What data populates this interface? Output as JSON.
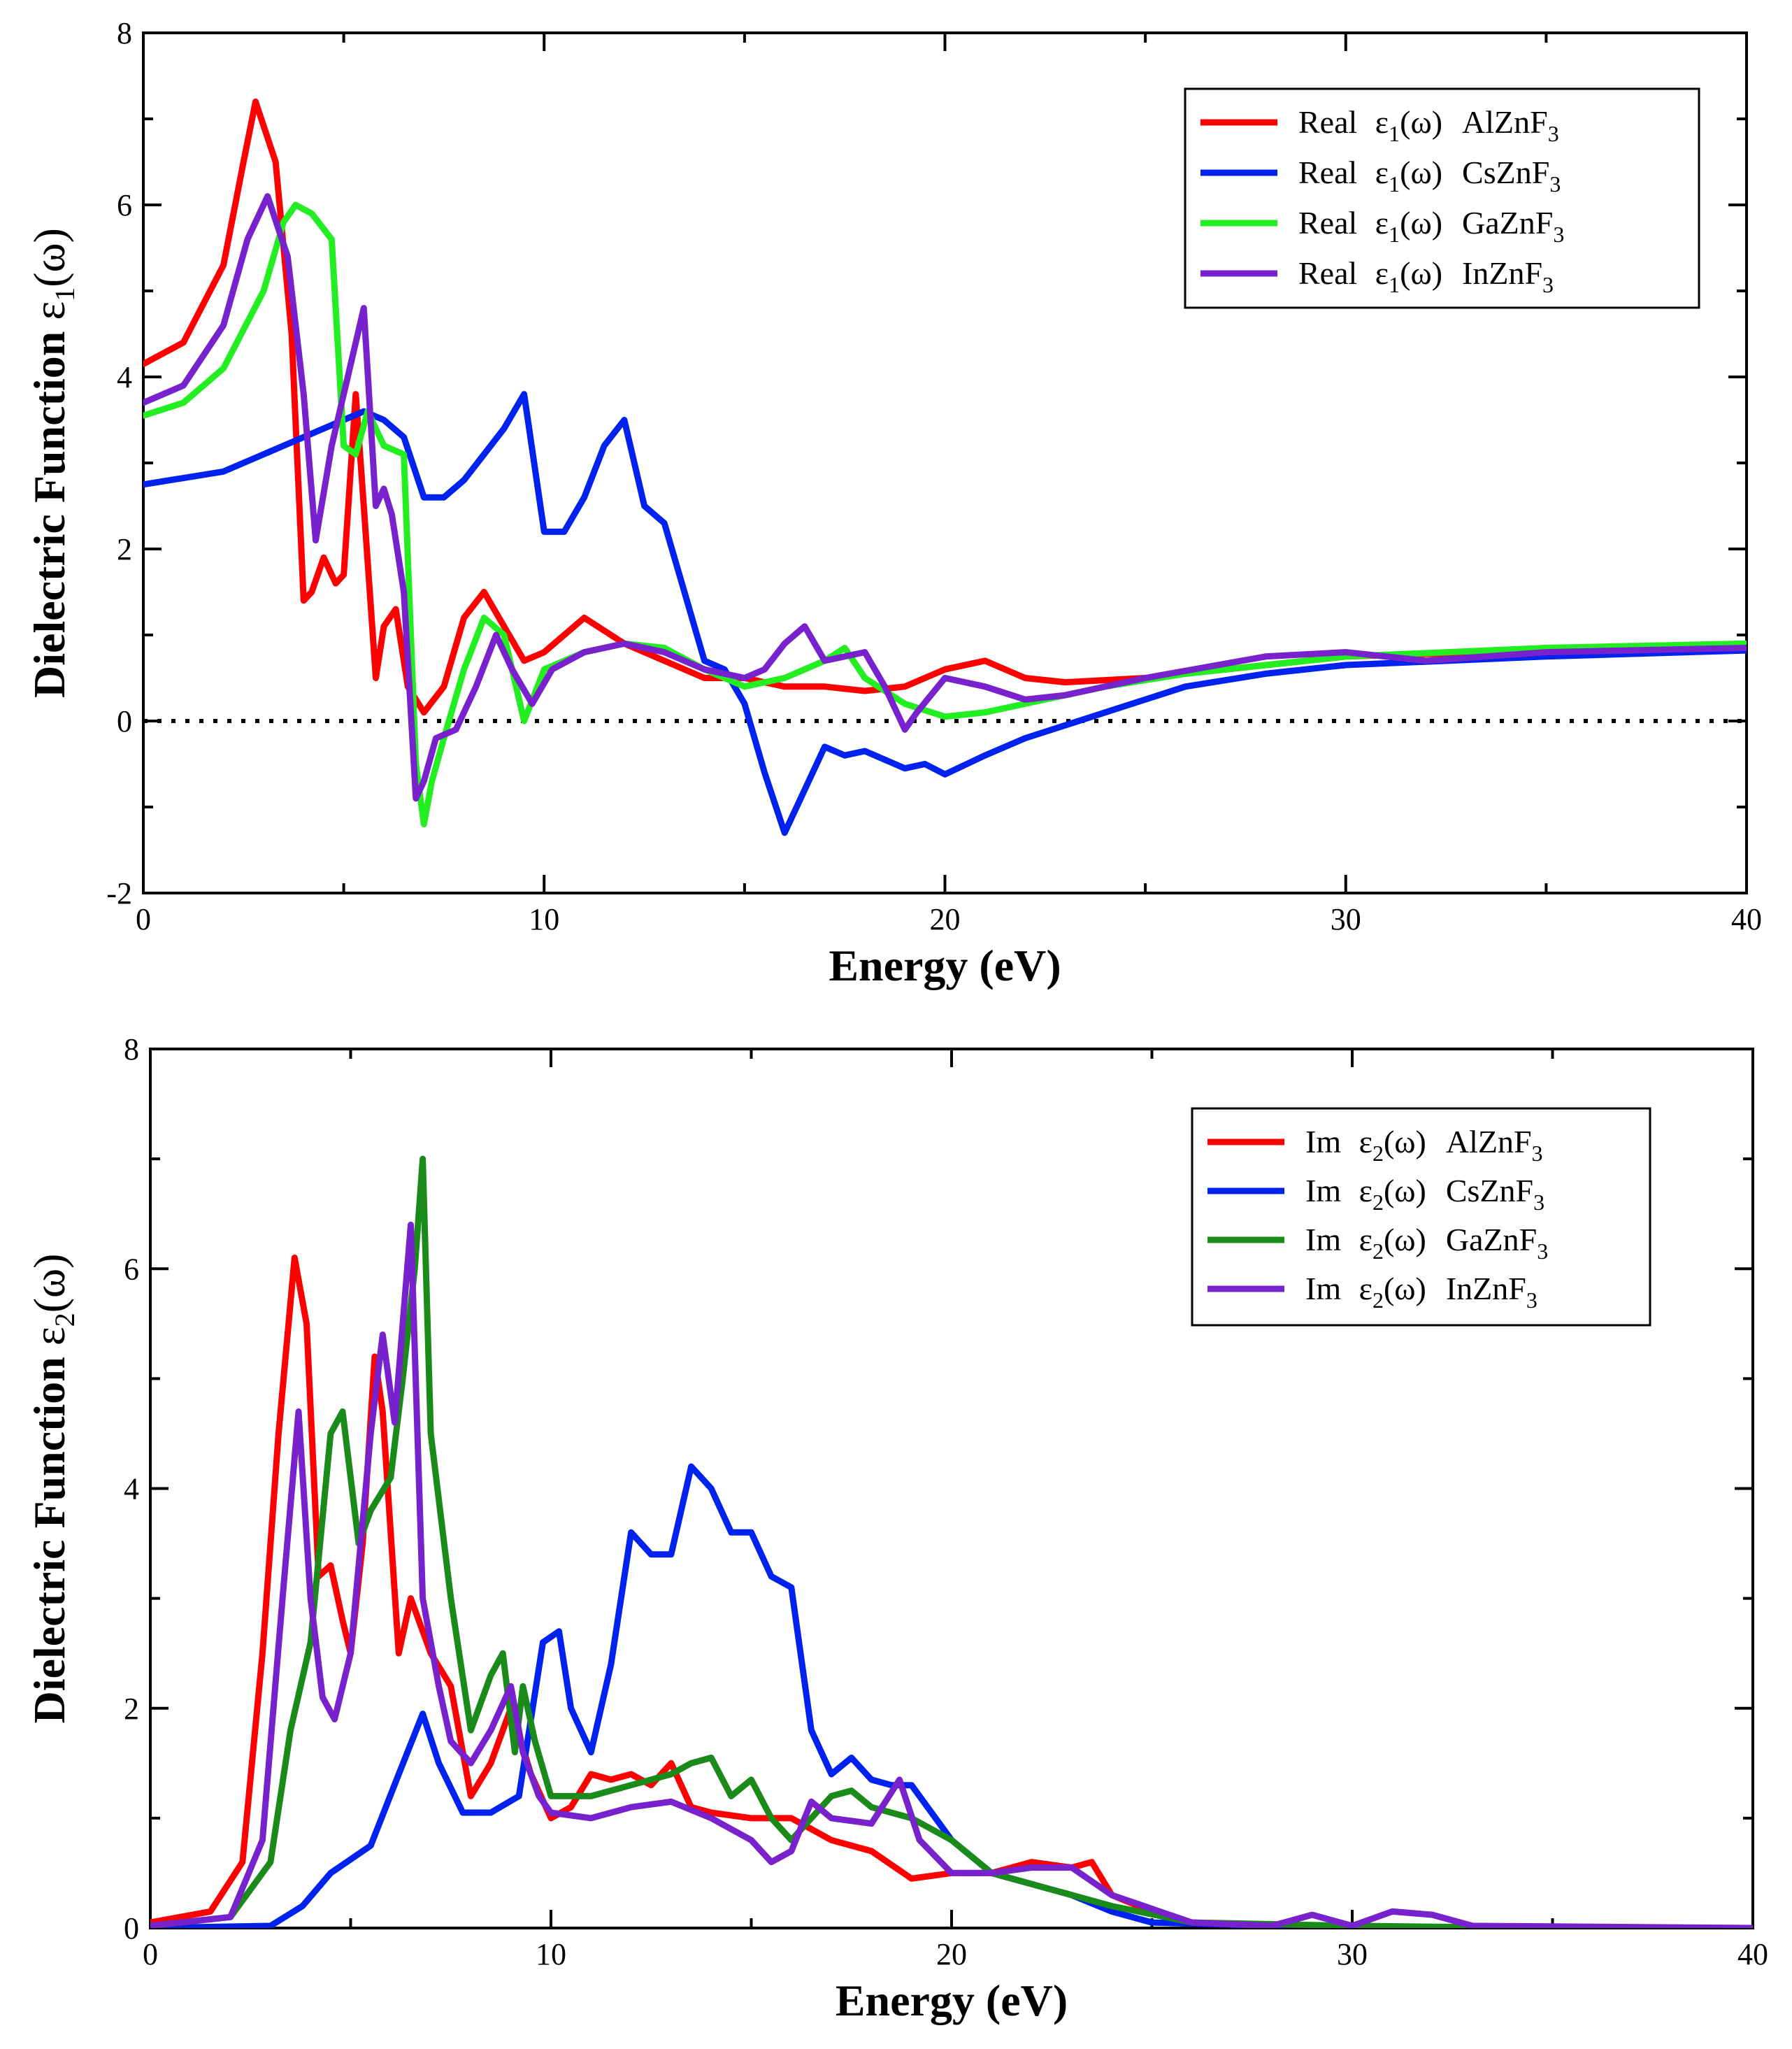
{
  "colors": {
    "red": "#ff0000",
    "blue": "#0022ee",
    "green_light": "#22ee22",
    "green_dark": "#1a8a1a",
    "purple": "#7722cc"
  },
  "chart_data": [
    {
      "type": "line",
      "xlabel": "Energy (eV)",
      "ylabel": "Dielectric Function ε1(ω)",
      "ylabel_prefix": "Dielectric Function ",
      "ylabel_symbol": "ε",
      "ylabel_sub": "1",
      "ylabel_suffix": "(ω)",
      "xlim": [
        0,
        40
      ],
      "ylim": [
        -2,
        8
      ],
      "xticks": [
        "0",
        "10",
        "20",
        "30",
        "40"
      ],
      "yticks": [
        "-2",
        "0",
        "2",
        "4",
        "6",
        "8"
      ],
      "grid": false,
      "reference_line": {
        "y": 0,
        "style": "dotted"
      },
      "legend_position": "top-right",
      "series": [
        {
          "name": "Real ε1(ω) AlZnF3",
          "label_prefix": "Real",
          "symbol": "ε",
          "sub": "1",
          "suffix": "(ω)",
          "material": "AlZnF",
          "material_sub": "3",
          "color": "#ff0000",
          "x": [
            0,
            1,
            2,
            2.5,
            2.8,
            3.3,
            3.7,
            4.0,
            4.2,
            4.5,
            4.8,
            5.0,
            5.3,
            5.5,
            5.8,
            6.0,
            6.3,
            6.6,
            7.0,
            7.5,
            8.0,
            8.5,
            9.0,
            9.5,
            10.0,
            11.0,
            12.0,
            13.0,
            14.0,
            15.0,
            16.0,
            17.0,
            18.0,
            19.0,
            20.0,
            21.0,
            22.0,
            23.0,
            25.0,
            30.0,
            35.0,
            40.0
          ],
          "y": [
            4.15,
            4.4,
            5.3,
            6.5,
            7.2,
            6.5,
            4.5,
            1.4,
            1.5,
            1.9,
            1.6,
            1.7,
            3.8,
            2.5,
            0.5,
            1.1,
            1.3,
            0.4,
            0.1,
            0.4,
            1.2,
            1.5,
            1.1,
            0.7,
            0.8,
            1.2,
            0.9,
            0.7,
            0.5,
            0.5,
            0.4,
            0.4,
            0.35,
            0.4,
            0.6,
            0.7,
            0.5,
            0.45,
            0.5,
            0.75,
            0.82,
            0.88
          ]
        },
        {
          "name": "Real ε1(ω) CsZnF3",
          "label_prefix": "Real",
          "symbol": "ε",
          "sub": "1",
          "suffix": "(ω)",
          "material": "CsZnF",
          "material_sub": "3",
          "color": "#0022ee",
          "x": [
            0,
            2,
            3.5,
            4.5,
            5.5,
            6.0,
            6.5,
            7.0,
            7.5,
            8.0,
            8.5,
            9.0,
            9.5,
            10.0,
            10.5,
            11.0,
            11.5,
            12.0,
            12.5,
            13.0,
            13.5,
            14.0,
            14.5,
            15.0,
            15.5,
            16.0,
            16.5,
            17.0,
            17.5,
            18.0,
            19.0,
            19.5,
            20.0,
            21.0,
            22.0,
            24.0,
            26.0,
            28.0,
            30.0,
            35.0,
            40.0
          ],
          "y": [
            2.75,
            2.9,
            3.2,
            3.4,
            3.6,
            3.5,
            3.3,
            2.6,
            2.6,
            2.8,
            3.1,
            3.4,
            3.8,
            2.2,
            2.2,
            2.6,
            3.2,
            3.5,
            2.5,
            2.3,
            1.5,
            0.7,
            0.6,
            0.2,
            -0.6,
            -1.3,
            -0.8,
            -0.3,
            -0.4,
            -0.35,
            -0.55,
            -0.5,
            -0.62,
            -0.4,
            -0.2,
            0.1,
            0.4,
            0.55,
            0.65,
            0.75,
            0.82
          ]
        },
        {
          "name": "Real ε1(ω) GaZnF3",
          "label_prefix": "Real",
          "symbol": "ε",
          "sub": "1",
          "suffix": "(ω)",
          "material": "GaZnF",
          "material_sub": "3",
          "color": "#22ee22",
          "x": [
            0,
            1,
            2,
            3,
            3.5,
            3.8,
            4.2,
            4.7,
            5.0,
            5.3,
            5.6,
            6.0,
            6.5,
            6.8,
            7.0,
            7.2,
            7.5,
            8.0,
            8.5,
            9.0,
            9.5,
            10.0,
            11.0,
            12.0,
            13.0,
            14.0,
            15.0,
            16.0,
            17.0,
            17.5,
            18.0,
            19.0,
            20.0,
            21.0,
            22.0,
            24.0,
            26.0,
            30.0,
            35.0,
            40.0
          ],
          "y": [
            3.55,
            3.7,
            4.1,
            5.0,
            5.8,
            6.0,
            5.9,
            5.6,
            3.2,
            3.1,
            3.6,
            3.2,
            3.1,
            -0.5,
            -1.2,
            -0.7,
            -0.2,
            0.6,
            1.2,
            1.0,
            0.0,
            0.6,
            0.8,
            0.9,
            0.85,
            0.6,
            0.4,
            0.5,
            0.7,
            0.85,
            0.5,
            0.2,
            0.05,
            0.1,
            0.2,
            0.4,
            0.55,
            0.75,
            0.85,
            0.9
          ]
        },
        {
          "name": "Real ε1(ω) InZnF3",
          "label_prefix": "Real",
          "symbol": "ε",
          "sub": "1",
          "suffix": "(ω)",
          "material": "InZnF",
          "material_sub": "3",
          "color": "#7722cc",
          "x": [
            0,
            1,
            2,
            2.6,
            3.1,
            3.6,
            4.0,
            4.3,
            4.7,
            5.0,
            5.5,
            5.8,
            6.0,
            6.2,
            6.5,
            6.8,
            7.0,
            7.3,
            7.8,
            8.3,
            8.8,
            9.2,
            9.7,
            10.2,
            11.0,
            12.0,
            13.0,
            14.0,
            15.0,
            15.5,
            16.0,
            16.5,
            17.0,
            18.0,
            18.5,
            19.0,
            19.3,
            20.0,
            21.0,
            22.0,
            23.0,
            25.0,
            28.0,
            30.0,
            32.0,
            35.0,
            40.0
          ],
          "y": [
            3.7,
            3.9,
            4.6,
            5.6,
            6.1,
            5.4,
            3.8,
            2.1,
            3.2,
            3.8,
            4.8,
            2.5,
            2.7,
            2.4,
            1.5,
            -0.9,
            -0.7,
            -0.2,
            -0.1,
            0.4,
            1.0,
            0.6,
            0.2,
            0.6,
            0.8,
            0.9,
            0.8,
            0.6,
            0.5,
            0.6,
            0.9,
            1.1,
            0.7,
            0.8,
            0.4,
            -0.1,
            0.1,
            0.5,
            0.4,
            0.25,
            0.3,
            0.5,
            0.75,
            0.8,
            0.7,
            0.8,
            0.85
          ]
        }
      ]
    },
    {
      "type": "line",
      "xlabel": "Energy (eV)",
      "ylabel": "Dielectric Function ε2(ω)",
      "ylabel_prefix": "Dielectric Function ",
      "ylabel_symbol": "ε",
      "ylabel_sub": "2",
      "ylabel_suffix": "(ω)",
      "xlim": [
        0,
        40
      ],
      "ylim": [
        0,
        8
      ],
      "xticks": [
        "0",
        "10",
        "20",
        "30",
        "40"
      ],
      "yticks": [
        "0",
        "2",
        "4",
        "6",
        "8"
      ],
      "grid": false,
      "legend_position": "top-right",
      "series": [
        {
          "name": "Im ε2(ω) AlZnF3",
          "label_prefix": "Im",
          "symbol": "ε",
          "sub": "2",
          "suffix": "(ω)",
          "material": "AlZnF",
          "material_sub": "3",
          "color": "#ff0000",
          "x": [
            0,
            1.5,
            2.3,
            2.8,
            3.2,
            3.6,
            3.9,
            4.2,
            4.5,
            4.8,
            5.0,
            5.3,
            5.6,
            5.8,
            6.2,
            6.5,
            7.0,
            7.5,
            8.0,
            8.5,
            9.0,
            9.5,
            10.0,
            10.5,
            11.0,
            11.5,
            12.0,
            12.5,
            13.0,
            13.5,
            14.0,
            15.0,
            16.0,
            17.0,
            18.0,
            19.0,
            20.0,
            21.0,
            22.0,
            23.0,
            23.5,
            24.0,
            25.0,
            26.0,
            28.0,
            30.0,
            33.0,
            40.0
          ],
          "y": [
            0.05,
            0.15,
            0.6,
            2.5,
            4.5,
            6.1,
            5.5,
            3.2,
            3.3,
            2.8,
            2.5,
            3.5,
            5.2,
            4.7,
            2.5,
            3.0,
            2.5,
            2.2,
            1.2,
            1.5,
            2.0,
            1.4,
            1.0,
            1.1,
            1.4,
            1.35,
            1.4,
            1.3,
            1.5,
            1.1,
            1.05,
            1.0,
            1.0,
            0.8,
            0.7,
            0.45,
            0.5,
            0.5,
            0.6,
            0.55,
            0.6,
            0.3,
            0.15,
            0.05,
            0.02,
            0.02,
            0.0,
            0.0
          ]
        },
        {
          "name": "Im ε2(ω) CsZnF3",
          "label_prefix": "Im",
          "symbol": "ε",
          "sub": "2",
          "suffix": "(ω)",
          "material": "CsZnF",
          "material_sub": "3",
          "color": "#0022ee",
          "x": [
            0,
            3.0,
            3.8,
            4.5,
            5.5,
            6.2,
            6.8,
            7.2,
            7.8,
            8.5,
            9.2,
            9.8,
            10.2,
            10.5,
            11.0,
            11.5,
            12.0,
            12.5,
            13.0,
            13.5,
            14.0,
            14.5,
            15.0,
            15.5,
            16.0,
            16.5,
            17.0,
            17.5,
            18.0,
            18.5,
            19.0,
            20.0,
            21.0,
            22.0,
            23.0,
            24.0,
            25.0,
            28.0,
            30.0,
            40.0
          ],
          "y": [
            0.0,
            0.02,
            0.2,
            0.5,
            0.75,
            1.4,
            1.95,
            1.5,
            1.05,
            1.05,
            1.2,
            2.6,
            2.7,
            2.0,
            1.6,
            2.4,
            3.6,
            3.4,
            3.4,
            4.2,
            4.0,
            3.6,
            3.6,
            3.2,
            3.1,
            1.8,
            1.4,
            1.55,
            1.35,
            1.3,
            1.3,
            0.8,
            0.5,
            0.4,
            0.3,
            0.15,
            0.05,
            0.02,
            0.01,
            0.0
          ]
        },
        {
          "name": "Im ε2(ω) GaZnF3",
          "label_prefix": "Im",
          "symbol": "ε",
          "sub": "2",
          "suffix": "(ω)",
          "material": "GaZnF",
          "material_sub": "3",
          "color": "#1a8a1a",
          "x": [
            0,
            2.0,
            3.0,
            3.5,
            4.0,
            4.5,
            4.8,
            5.2,
            5.5,
            6.0,
            6.3,
            6.6,
            6.8,
            7.0,
            7.5,
            8.0,
            8.5,
            8.8,
            9.1,
            9.3,
            9.6,
            10.0,
            11.0,
            12.0,
            13.0,
            13.5,
            14.0,
            14.5,
            15.0,
            15.5,
            16.0,
            17.0,
            17.5,
            18.0,
            19.0,
            20.0,
            21.0,
            22.0,
            24.0,
            26.0,
            30.0,
            35.0,
            40.0
          ],
          "y": [
            0.02,
            0.1,
            0.6,
            1.8,
            2.6,
            4.5,
            4.7,
            3.5,
            3.8,
            4.1,
            5.0,
            6.0,
            7.0,
            4.5,
            3.0,
            1.8,
            2.3,
            2.5,
            1.6,
            2.2,
            1.7,
            1.2,
            1.2,
            1.3,
            1.4,
            1.5,
            1.55,
            1.2,
            1.35,
            1.0,
            0.8,
            1.2,
            1.25,
            1.1,
            1.0,
            0.8,
            0.5,
            0.4,
            0.2,
            0.05,
            0.02,
            0.0,
            0.0
          ]
        },
        {
          "name": "Im ε2(ω) InZnF3",
          "label_prefix": "Im",
          "symbol": "ε",
          "sub": "2",
          "suffix": "(ω)",
          "material": "InZnF",
          "material_sub": "3",
          "color": "#7722cc",
          "x": [
            0,
            2.0,
            2.8,
            3.3,
            3.7,
            4.0,
            4.3,
            4.6,
            5.0,
            5.5,
            5.8,
            6.1,
            6.5,
            6.8,
            7.2,
            7.5,
            8.0,
            8.5,
            9.0,
            9.3,
            9.7,
            10.0,
            11.0,
            12.0,
            13.0,
            14.0,
            15.0,
            15.5,
            16.0,
            16.5,
            17.0,
            18.0,
            18.7,
            19.2,
            20.0,
            21.0,
            22.0,
            23.0,
            24.0,
            26.0,
            28.0,
            29.0,
            30.0,
            31.0,
            32.0,
            33.0,
            40.0
          ],
          "y": [
            0.02,
            0.1,
            0.8,
            3.0,
            4.7,
            3.0,
            2.1,
            1.9,
            2.5,
            4.5,
            5.4,
            4.6,
            6.4,
            3.0,
            2.2,
            1.7,
            1.5,
            1.8,
            2.2,
            1.6,
            1.2,
            1.05,
            1.0,
            1.1,
            1.15,
            1.0,
            0.8,
            0.6,
            0.7,
            1.15,
            1.0,
            0.95,
            1.35,
            0.8,
            0.5,
            0.5,
            0.55,
            0.55,
            0.3,
            0.05,
            0.02,
            0.12,
            0.02,
            0.15,
            0.12,
            0.02,
            0.0
          ]
        }
      ]
    }
  ]
}
